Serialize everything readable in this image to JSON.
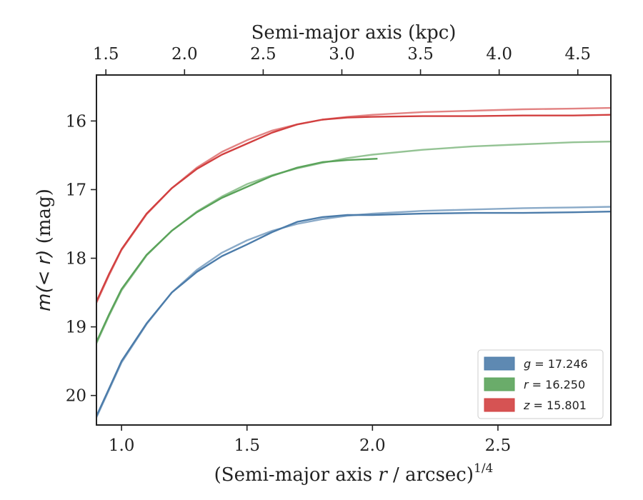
{
  "chart_data": {
    "type": "line",
    "top_axis": {
      "label": "Semi-major axis (kpc)",
      "ticks": [
        "1.5",
        "2.0",
        "2.5",
        "3.0",
        "3.5",
        "4.0",
        "4.5"
      ],
      "tick_values": [
        1.5,
        2.0,
        2.5,
        3.0,
        3.5,
        4.0,
        4.5
      ],
      "range": [
        1.44,
        4.71
      ]
    },
    "x_axis": {
      "label": "(Semi-major axis r / arcsec)",
      "label_prefix": "(Semi-major axis ",
      "label_var": "r",
      "label_suffix": " / arcsec)",
      "label_exponent": "1/4",
      "ticks": [
        "1.0",
        "1.5",
        "2.0",
        "2.5"
      ],
      "tick_values": [
        1.0,
        1.5,
        2.0,
        2.5
      ],
      "range": [
        0.9,
        2.95
      ]
    },
    "y_axis": {
      "label": "m(< r) (mag)",
      "label_math": "m(< r)",
      "label_unit": " (mag)",
      "ticks": [
        "16",
        "17",
        "18",
        "19",
        "20"
      ],
      "tick_values": [
        16,
        17,
        18,
        19,
        20
      ],
      "range": [
        15.33,
        20.43
      ],
      "inverted": true
    },
    "series": [
      {
        "name": "g = 17.246",
        "band": "g",
        "value": "17.246",
        "color": "#4c7caa",
        "data_points": [
          [
            0.9,
            20.3
          ],
          [
            0.95,
            19.9
          ],
          [
            1.0,
            19.5
          ],
          [
            1.1,
            18.95
          ],
          [
            1.2,
            18.5
          ],
          [
            1.3,
            18.2
          ],
          [
            1.4,
            17.97
          ],
          [
            1.5,
            17.8
          ],
          [
            1.6,
            17.62
          ],
          [
            1.7,
            17.47
          ],
          [
            1.8,
            17.4
          ],
          [
            1.9,
            17.37
          ],
          [
            2.0,
            17.37
          ],
          [
            2.2,
            17.35
          ],
          [
            2.4,
            17.34
          ],
          [
            2.6,
            17.34
          ],
          [
            2.8,
            17.33
          ],
          [
            2.95,
            17.32
          ]
        ],
        "model_points": [
          [
            0.9,
            20.32
          ],
          [
            0.95,
            19.92
          ],
          [
            1.0,
            19.52
          ],
          [
            1.1,
            18.96
          ],
          [
            1.2,
            18.5
          ],
          [
            1.3,
            18.17
          ],
          [
            1.4,
            17.92
          ],
          [
            1.5,
            17.74
          ],
          [
            1.6,
            17.6
          ],
          [
            1.7,
            17.5
          ],
          [
            1.8,
            17.43
          ],
          [
            1.9,
            17.38
          ],
          [
            2.0,
            17.35
          ],
          [
            2.2,
            17.31
          ],
          [
            2.4,
            17.29
          ],
          [
            2.6,
            17.27
          ],
          [
            2.8,
            17.26
          ],
          [
            2.95,
            17.25
          ]
        ]
      },
      {
        "name": "r = 16.250",
        "band": "r",
        "value": "16.250",
        "color": "#5aa35a",
        "data_points": [
          [
            0.9,
            19.22
          ],
          [
            0.95,
            18.82
          ],
          [
            1.0,
            18.45
          ],
          [
            1.1,
            17.95
          ],
          [
            1.2,
            17.6
          ],
          [
            1.3,
            17.33
          ],
          [
            1.4,
            17.12
          ],
          [
            1.5,
            16.96
          ],
          [
            1.6,
            16.8
          ],
          [
            1.7,
            16.68
          ],
          [
            1.8,
            16.6
          ],
          [
            1.9,
            16.57
          ],
          [
            2.02,
            16.55
          ]
        ],
        "model_points": [
          [
            0.9,
            19.24
          ],
          [
            0.95,
            18.84
          ],
          [
            1.0,
            18.47
          ],
          [
            1.1,
            17.96
          ],
          [
            1.2,
            17.6
          ],
          [
            1.3,
            17.32
          ],
          [
            1.4,
            17.1
          ],
          [
            1.5,
            16.92
          ],
          [
            1.6,
            16.79
          ],
          [
            1.7,
            16.69
          ],
          [
            1.8,
            16.61
          ],
          [
            1.9,
            16.54
          ],
          [
            2.0,
            16.49
          ],
          [
            2.2,
            16.42
          ],
          [
            2.4,
            16.37
          ],
          [
            2.6,
            16.34
          ],
          [
            2.8,
            16.31
          ],
          [
            2.95,
            16.3
          ]
        ]
      },
      {
        "name": "z = 15.801",
        "band": "z",
        "value": "15.801",
        "color": "#d24040",
        "data_points": [
          [
            0.9,
            18.63
          ],
          [
            0.95,
            18.23
          ],
          [
            1.0,
            17.87
          ],
          [
            1.1,
            17.35
          ],
          [
            1.2,
            16.98
          ],
          [
            1.3,
            16.7
          ],
          [
            1.4,
            16.49
          ],
          [
            1.5,
            16.33
          ],
          [
            1.6,
            16.17
          ],
          [
            1.7,
            16.05
          ],
          [
            1.8,
            15.98
          ],
          [
            1.9,
            15.95
          ],
          [
            2.0,
            15.94
          ],
          [
            2.2,
            15.93
          ],
          [
            2.4,
            15.93
          ],
          [
            2.6,
            15.92
          ],
          [
            2.8,
            15.92
          ],
          [
            2.95,
            15.91
          ]
        ],
        "model_points": [
          [
            0.9,
            18.65
          ],
          [
            0.95,
            18.25
          ],
          [
            1.0,
            17.88
          ],
          [
            1.1,
            17.36
          ],
          [
            1.2,
            16.98
          ],
          [
            1.3,
            16.68
          ],
          [
            1.4,
            16.45
          ],
          [
            1.5,
            16.28
          ],
          [
            1.6,
            16.14
          ],
          [
            1.7,
            16.05
          ],
          [
            1.8,
            15.98
          ],
          [
            1.9,
            15.94
          ],
          [
            2.0,
            15.91
          ],
          [
            2.2,
            15.87
          ],
          [
            2.4,
            15.85
          ],
          [
            2.6,
            15.83
          ],
          [
            2.8,
            15.82
          ],
          [
            2.95,
            15.81
          ]
        ]
      }
    ],
    "legend": {
      "position": "lower right",
      "entries": [
        {
          "var": "g",
          "text": " = 17.246",
          "color": "#4c7caa"
        },
        {
          "var": "r",
          "text": " = 16.250",
          "color": "#5aa35a"
        },
        {
          "var": "z",
          "text": " = 15.801",
          "color": "#d24040"
        }
      ]
    }
  }
}
